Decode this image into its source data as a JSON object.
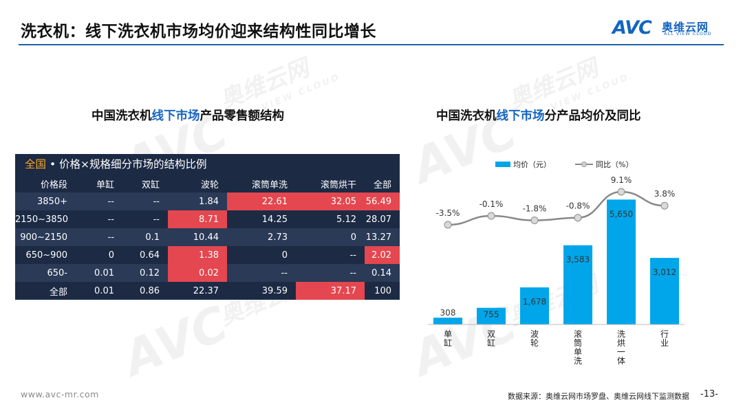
{
  "header": {
    "title": "洗衣机：线下洗衣机市场均价迎来结构性同比增长",
    "logo_mark": "AVC",
    "logo_cn": "奥维云网",
    "logo_en": "ALL VIEW CLOUD"
  },
  "watermark": {
    "mark": "AVC",
    "cn": "奥维云网",
    "en": "ALL VIEW CLOUD"
  },
  "left_panel": {
    "title_pre": "中国洗衣机",
    "title_hl": "线下市场",
    "title_post": "产品零售额结构",
    "caption_hl": "全国",
    "caption_rest": " • 价格×规格细分市场的结构比例",
    "colors": {
      "header_bg": "#1c2a44",
      "row_alt_bg": "#2a3a57",
      "highlight": "#e4474f",
      "caption_accent": "#f5a623"
    }
  },
  "chart_data": [
    {
      "type": "table",
      "columns": [
        "价格段",
        "单缸",
        "双缸",
        "波轮",
        "滚筒单洗",
        "滚筒烘干",
        "全部"
      ],
      "rows": [
        {
          "cells": [
            "3850+",
            "--",
            "--",
            "1.84",
            "22.61",
            "32.05",
            "56.49"
          ],
          "highlight": [
            false,
            false,
            false,
            false,
            true,
            true,
            true
          ]
        },
        {
          "cells": [
            "2150~3850",
            "--",
            "--",
            "8.71",
            "14.25",
            "5.12",
            "28.07"
          ],
          "highlight": [
            false,
            false,
            false,
            true,
            false,
            false,
            false
          ]
        },
        {
          "cells": [
            "900~2150",
            "--",
            "0.1",
            "10.44",
            "2.73",
            "0",
            "13.27"
          ],
          "highlight": [
            false,
            false,
            false,
            false,
            false,
            false,
            false
          ]
        },
        {
          "cells": [
            "650~900",
            "0",
            "0.64",
            "1.38",
            "0",
            "--",
            "2.02"
          ],
          "highlight": [
            false,
            false,
            false,
            true,
            false,
            false,
            true
          ]
        },
        {
          "cells": [
            "650-",
            "0.01",
            "0.12",
            "0.02",
            "--",
            "--",
            "0.14"
          ],
          "highlight": [
            false,
            false,
            false,
            true,
            false,
            false,
            false
          ]
        },
        {
          "cells": [
            "全部",
            "0.01",
            "0.86",
            "22.37",
            "39.59",
            "37.17",
            "100"
          ],
          "highlight": [
            false,
            false,
            false,
            false,
            false,
            true,
            false
          ]
        }
      ]
    },
    {
      "type": "bar",
      "title_pre": "中国洗衣机",
      "title_hl": "线下市场",
      "title_post": "分产品均价及同比",
      "categories": [
        "单缸",
        "双缸",
        "波轮",
        "滚筒单洗",
        "洗烘一体",
        "行业"
      ],
      "series": [
        {
          "name": "均价（元）",
          "type": "bar",
          "color": "#00a6e9",
          "values": [
            308,
            755,
            1678,
            3583,
            5650,
            3012
          ],
          "labels": [
            "308",
            "755",
            "1,678",
            "3,583",
            "5,650",
            "3,012"
          ]
        },
        {
          "name": "同比（%）",
          "type": "line",
          "color": "#888888",
          "values": [
            -3.5,
            -0.1,
            -1.8,
            -0.8,
            9.1,
            3.8
          ],
          "labels": [
            "-3.5%",
            "-0.1%",
            "-1.8%",
            "-0.8%",
            "9.1%",
            "3.8%"
          ]
        }
      ],
      "legend": "top-center",
      "grid": false,
      "ylim": [
        0,
        6000
      ]
    }
  ],
  "footer": {
    "url": "www.avc-mr.com",
    "source": "数据来源：奥维云网市场罗盘、奥维云网线下监测数据",
    "page": "-13-"
  }
}
